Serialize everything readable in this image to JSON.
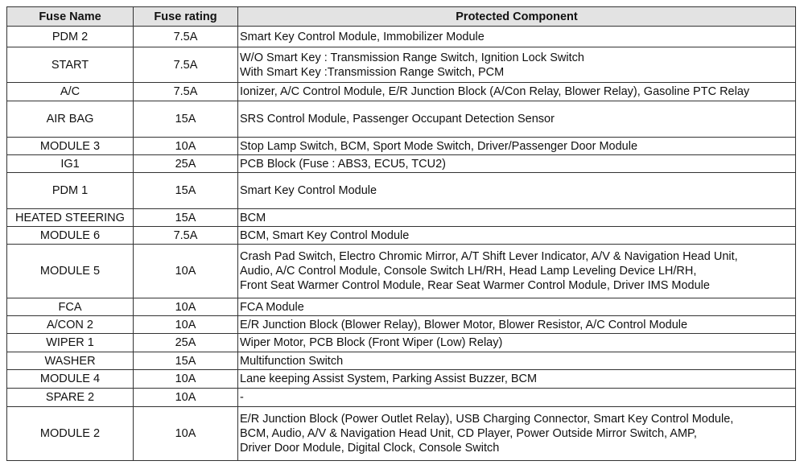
{
  "table": {
    "header": [
      "Fuse Name",
      "Fuse rating",
      "Protected Component"
    ],
    "rows": [
      [
        "PDM 2",
        "7.5A",
        [
          "Smart Key Control Module, Immobilizer Module"
        ]
      ],
      [
        "START",
        "7.5A",
        [
          "W/O Smart Key : Transmission Range Switch, Ignition Lock Switch",
          "With Smart Key :Transmission Range Switch, PCM"
        ]
      ],
      [
        "A/C",
        "7.5A",
        [
          "Ionizer, A/C Control Module, E/R Junction Block (A/Con Relay, Blower Relay), Gasoline PTC Relay"
        ]
      ],
      [
        "AIR BAG",
        "15A",
        [
          "SRS Control Module, Passenger Occupant Detection Sensor"
        ]
      ],
      [
        "MODULE 3",
        "10A",
        [
          "Stop Lamp Switch, BCM, Sport Mode Switch, Driver/Passenger Door Module"
        ]
      ],
      [
        "IG1",
        "25A",
        [
          "PCB Block (Fuse : ABS3, ECU5, TCU2)"
        ]
      ],
      [
        "PDM 1",
        "15A",
        [
          "Smart Key Control Module"
        ]
      ],
      [
        "HEATED STEERING",
        "15A",
        [
          "BCM"
        ]
      ],
      [
        "MODULE 6",
        "7.5A",
        [
          "BCM, Smart Key Control Module"
        ]
      ],
      [
        "MODULE 5",
        "10A",
        [
          "Crash Pad Switch, Electro Chromic Mirror, A/T Shift Lever Indicator, A/V & Navigation Head Unit,",
          "Audio, A/C Control Module, Console Switch LH/RH, Head Lamp Leveling Device LH/RH,",
          "Front Seat Warmer Control Module, Rear Seat Warmer Control Module, Driver IMS Module"
        ]
      ],
      [
        "FCA",
        "10A",
        [
          "FCA Module"
        ]
      ],
      [
        "A/CON 2",
        "10A",
        [
          "E/R Junction Block (Blower Relay), Blower Motor, Blower Resistor, A/C Control Module"
        ]
      ],
      [
        "WIPER 1",
        "25A",
        [
          "Wiper Motor, PCB Block (Front Wiper (Low) Relay)"
        ]
      ],
      [
        "WASHER",
        "15A",
        [
          "Multifunction Switch"
        ]
      ],
      [
        "MODULE 4",
        "10A",
        [
          "Lane keeping Assist System, Parking Assist Buzzer, BCM"
        ]
      ],
      [
        "SPARE 2",
        "10A",
        [
          "-"
        ]
      ],
      [
        "MODULE 2",
        "10A",
        [
          "E/R Junction Block (Power Outlet Relay), USB Charging Connector, Smart Key Control Module,",
          "BCM, Audio, A/V & Navigation Head Unit, CD Player, Power Outside Mirror Switch, AMP,",
          "Driver Door Module, Digital Clock, Console Switch"
        ]
      ]
    ]
  }
}
